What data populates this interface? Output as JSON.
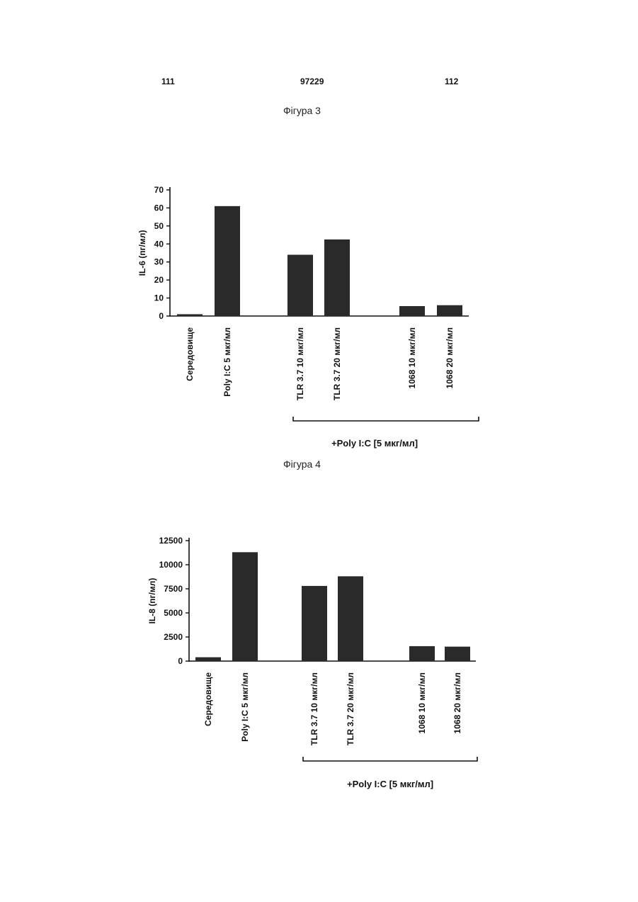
{
  "page_header": {
    "left": "111",
    "center": "97229",
    "right": "112"
  },
  "figures": [
    {
      "title": "Фігура 3"
    },
    {
      "title": "Фігура 4"
    }
  ],
  "chart_data": [
    {
      "type": "bar",
      "ylabel": "IL-6 (пг/мл)",
      "xlabel": "",
      "ylim": [
        0,
        70
      ],
      "yticks": [
        0,
        10,
        20,
        30,
        40,
        50,
        60,
        70
      ],
      "categories": [
        "Середовище",
        "Poly I:C 5 мкг/мл",
        "TLR 3.7 10 мкг/мл",
        "TLR 3.7 20 мкг/мл",
        "1068 10 мкг/мл",
        "1068 20 мкг/мл"
      ],
      "values": [
        1,
        61,
        34,
        42.5,
        5.5,
        6
      ],
      "bracket_label": "+Poly I:C [5 мкг/мл]",
      "bar_color": "#2a2a2a"
    },
    {
      "type": "bar",
      "ylabel": "IL-8 (пг/мл)",
      "xlabel": "",
      "ylim": [
        0,
        12500
      ],
      "yticks": [
        0,
        2500,
        5000,
        7500,
        10000,
        12500
      ],
      "categories": [
        "Середовище",
        "Poly I:C 5 мкг/мл",
        "TLR 3.7 10 мкг/мл",
        "TLR 3.7 20 мкг/мл",
        "1068 10 мкг/мл",
        "1068 20 мкг/мл"
      ],
      "values": [
        400,
        11300,
        7800,
        8800,
        1550,
        1500
      ],
      "bracket_label": "+Poly I:C [5 мкг/мл]",
      "bar_color": "#2a2a2a"
    }
  ]
}
